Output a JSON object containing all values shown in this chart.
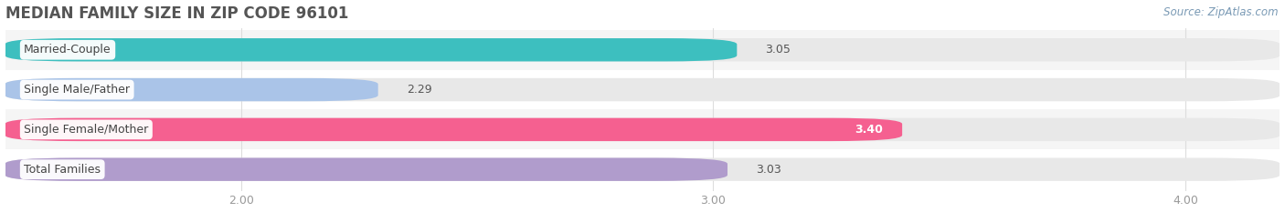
{
  "title": "MEDIAN FAMILY SIZE IN ZIP CODE 96101",
  "source": "Source: ZipAtlas.com",
  "categories": [
    "Married-Couple",
    "Single Male/Father",
    "Single Female/Mother",
    "Total Families"
  ],
  "values": [
    3.05,
    2.29,
    3.4,
    3.03
  ],
  "bar_colors": [
    "#3dbfbf",
    "#aac4e8",
    "#f56090",
    "#b09ccc"
  ],
  "bar_bg_color": "#e8e8e8",
  "xlim": [
    1.5,
    4.2
  ],
  "data_min": 1.5,
  "data_max": 4.2,
  "xticks": [
    2.0,
    3.0,
    4.0
  ],
  "xtick_labels": [
    "2.00",
    "3.00",
    "4.00"
  ],
  "figsize": [
    14.06,
    2.33
  ],
  "dpi": 100,
  "title_fontsize": 12,
  "label_fontsize": 9,
  "value_fontsize": 9,
  "source_fontsize": 8.5,
  "bar_height": 0.58,
  "background_color": "#ffffff",
  "title_color": "#555555",
  "label_color": "#444444",
  "value_color_outside": "#555555",
  "source_color": "#7a9ab5",
  "tick_color": "#999999",
  "grid_color": "#dddddd",
  "row_bg_colors": [
    "#f5f5f5",
    "#ffffff",
    "#f5f5f5",
    "#ffffff"
  ]
}
